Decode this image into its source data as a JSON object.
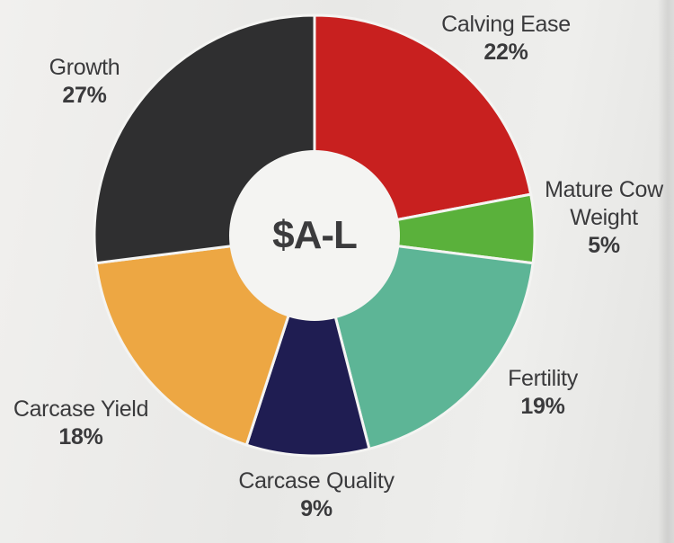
{
  "chart_data": {
    "type": "pie",
    "style": "donut",
    "title": "$A-L",
    "categories": [
      "Calving Ease",
      "Mature Cow Weight",
      "Fertility",
      "Carcase Quality",
      "Carcase Yield",
      "Growth"
    ],
    "values": [
      22,
      5,
      19,
      9,
      18,
      27
    ],
    "value_labels": [
      "22%",
      "5%",
      "19%",
      "9%",
      "18%",
      "27%"
    ],
    "colors": [
      "#c8201f",
      "#5ab13b",
      "#5db596",
      "#1f1d52",
      "#eda743",
      "#2f2f30"
    ]
  },
  "labels": {
    "calving_ease": {
      "name": "Calving Ease",
      "pct": "22%"
    },
    "mature_cow_weight": {
      "name_line1": "Mature Cow",
      "name_line2": "Weight",
      "pct": "5%"
    },
    "fertility": {
      "name": "Fertility",
      "pct": "19%"
    },
    "carcase_quality": {
      "name": "Carcase Quality",
      "pct": "9%"
    },
    "carcase_yield": {
      "name": "Carcase Yield",
      "pct": "18%"
    },
    "growth": {
      "name": "Growth",
      "pct": "27%"
    }
  }
}
